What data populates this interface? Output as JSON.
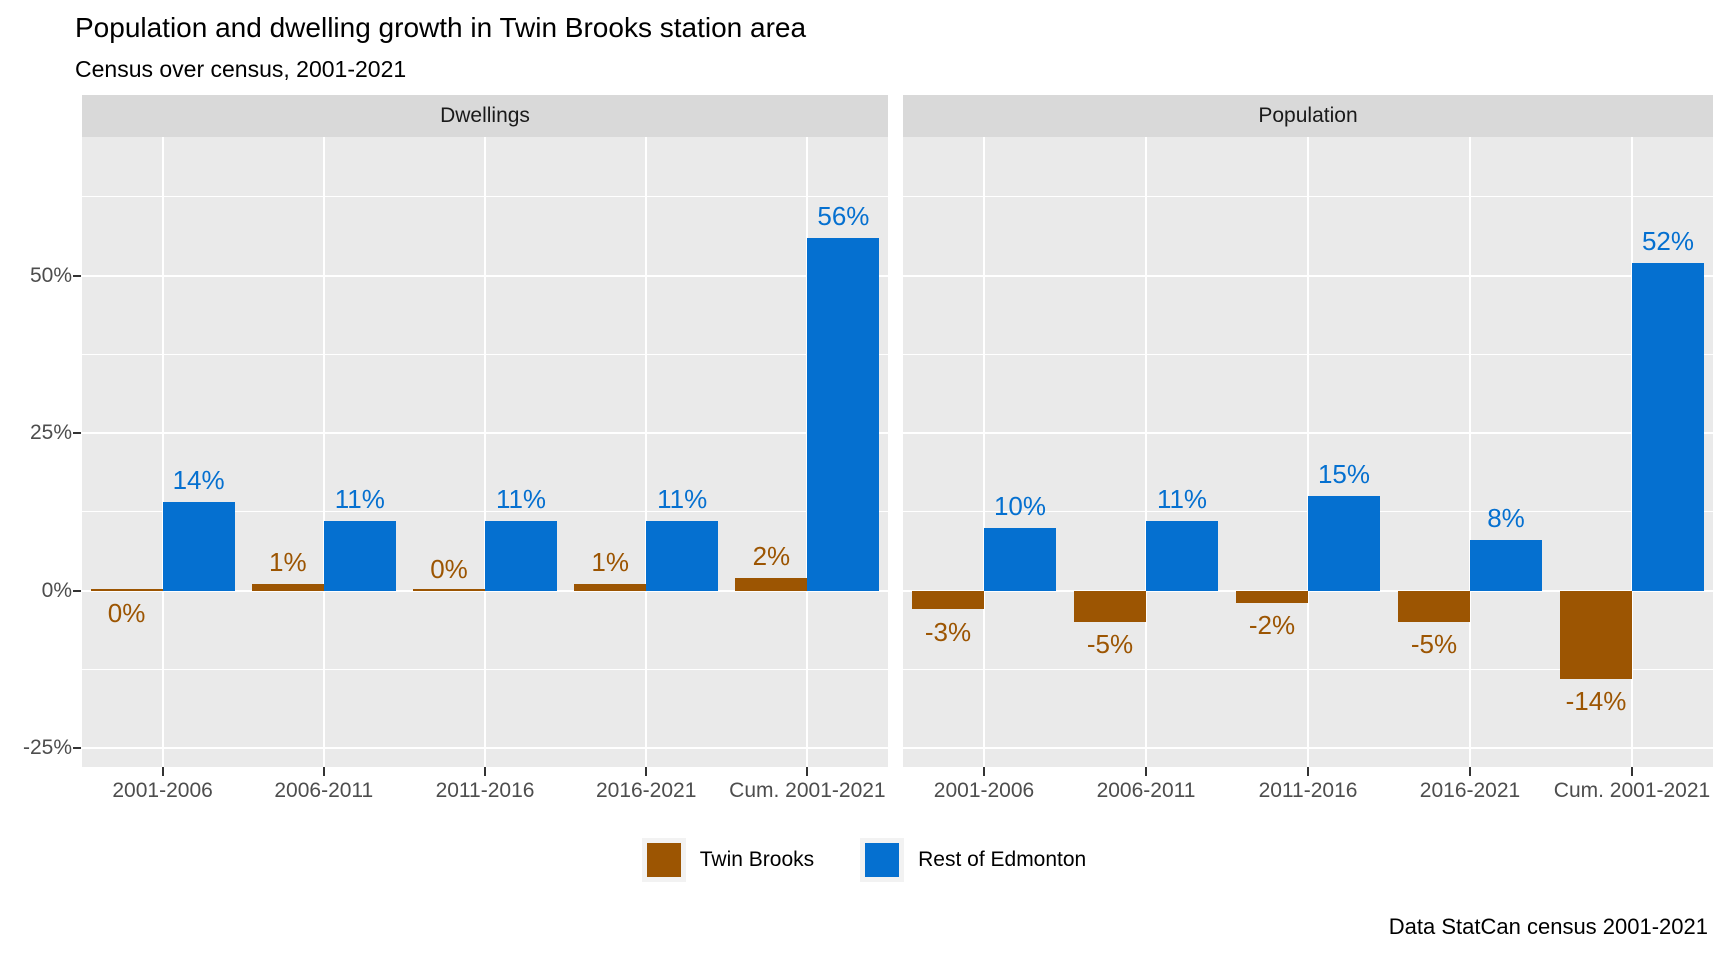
{
  "title": "Population and dwelling growth in Twin Brooks station area",
  "subtitle": "Census over census, 2001-2021",
  "caption": "Data StatCan census 2001-2021",
  "colors": {
    "twin_brooks": "#9c5502",
    "rest_of_edmonton": "#0570d0",
    "panel_background": "#eaeaea",
    "strip_background": "#d9d9d9",
    "gridline": "#ffffff",
    "axis_text": "#4d4d4d",
    "tick_mark": "#333333"
  },
  "legend": {
    "items": [
      {
        "label": "Twin Brooks",
        "color": "#9c5502"
      },
      {
        "label": "Rest of Edmonton",
        "color": "#0570d0"
      }
    ]
  },
  "chart_data": {
    "type": "bar",
    "layout": "two facets side by side, dodged bars, horizontal white gridlines on gray panels, legend bottom center",
    "x_categories": [
      "2001-2006",
      "2006-2011",
      "2011-2016",
      "2016-2021",
      "Cum. 2001-2021"
    ],
    "y_axis": {
      "tick_labels": [
        "50%",
        "25%",
        "0%",
        "-25%"
      ],
      "tick_values": [
        50,
        25,
        0,
        -25
      ],
      "minor_gridline_values": [
        62.5,
        37.5,
        12.5,
        -12.5
      ],
      "range": [
        -28,
        72
      ],
      "unit": "percent"
    },
    "facets": [
      {
        "title": "Dwellings",
        "series": [
          {
            "name": "Twin Brooks",
            "color": "#9c5502",
            "values": [
              0,
              1,
              0,
              1,
              2
            ],
            "labels": [
              "0%",
              "1%",
              "0%",
              "1%",
              "2%"
            ],
            "label_side": [
              "below",
              "above",
              "above",
              "above",
              "above"
            ]
          },
          {
            "name": "Rest of Edmonton",
            "color": "#0570d0",
            "values": [
              14,
              11,
              11,
              11,
              56
            ],
            "labels": [
              "14%",
              "11%",
              "11%",
              "11%",
              "56%"
            ],
            "label_side": [
              "above",
              "above",
              "above",
              "above",
              "above"
            ]
          }
        ]
      },
      {
        "title": "Population",
        "series": [
          {
            "name": "Twin Brooks",
            "color": "#9c5502",
            "values": [
              -3,
              -5,
              -2,
              -5,
              -14
            ],
            "labels": [
              "-3%",
              "-5%",
              "-2%",
              "-5%",
              "-14%"
            ],
            "label_side": [
              "below",
              "below",
              "below",
              "below",
              "below"
            ]
          },
          {
            "name": "Rest of Edmonton",
            "color": "#0570d0",
            "values": [
              10,
              11,
              15,
              8,
              52
            ],
            "labels": [
              "10%",
              "11%",
              "15%",
              "8%",
              "52%"
            ],
            "label_side": [
              "above",
              "above",
              "above",
              "above",
              "above"
            ]
          }
        ]
      }
    ]
  }
}
